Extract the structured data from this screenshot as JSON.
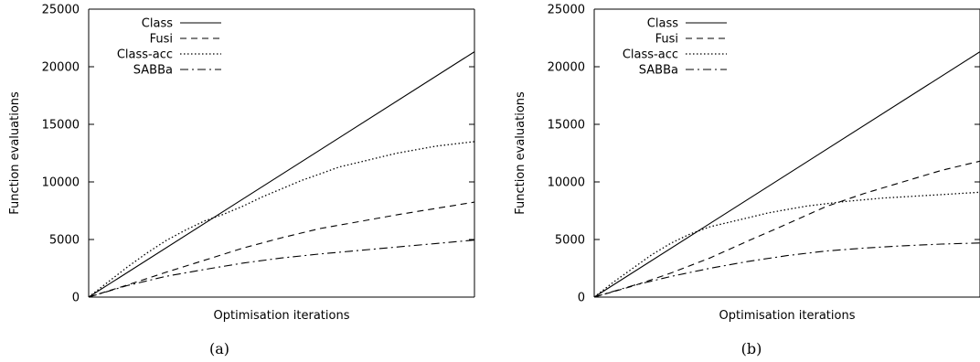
{
  "chart_data": [
    {
      "type": "line",
      "caption": "(a)",
      "xlabel": "Optimisation iterations",
      "ylabel": "Function evaluations",
      "ylim": [
        0,
        25000
      ],
      "yticks": [
        0,
        5000,
        10000,
        15000,
        20000,
        25000
      ],
      "xlim": [
        0,
        1
      ],
      "x_tick_labels": false,
      "grid": false,
      "legend_position": "top-left",
      "series": [
        {
          "name": "Class",
          "style": "solid",
          "points": [
            [
              0,
              0
            ],
            [
              1,
              21300
            ]
          ]
        },
        {
          "name": "Fusi",
          "style": "dashed",
          "points": [
            [
              0,
              0
            ],
            [
              0.1,
              1050
            ],
            [
              0.2,
              2150
            ],
            [
              0.3,
              3200
            ],
            [
              0.4,
              4250
            ],
            [
              0.5,
              5150
            ],
            [
              0.6,
              5950
            ],
            [
              0.7,
              6550
            ],
            [
              0.8,
              7150
            ],
            [
              0.9,
              7700
            ],
            [
              1,
              8250
            ]
          ]
        },
        {
          "name": "Class-acc",
          "style": "dotted",
          "points": [
            [
              0,
              0
            ],
            [
              0.05,
              1300
            ],
            [
              0.1,
              2600
            ],
            [
              0.15,
              3800
            ],
            [
              0.2,
              4900
            ],
            [
              0.25,
              5800
            ],
            [
              0.3,
              6600
            ],
            [
              0.35,
              7200
            ],
            [
              0.4,
              7900
            ],
            [
              0.45,
              8700
            ],
            [
              0.5,
              9400
            ],
            [
              0.55,
              10100
            ],
            [
              0.6,
              10700
            ],
            [
              0.65,
              11300
            ],
            [
              0.7,
              11700
            ],
            [
              0.75,
              12100
            ],
            [
              0.8,
              12500
            ],
            [
              0.85,
              12800
            ],
            [
              0.9,
              13100
            ],
            [
              0.95,
              13300
            ],
            [
              1,
              13500
            ]
          ]
        },
        {
          "name": "SABBa",
          "style": "dashdot",
          "points": [
            [
              0,
              0
            ],
            [
              0.1,
              1000
            ],
            [
              0.2,
              1800
            ],
            [
              0.3,
              2400
            ],
            [
              0.4,
              2950
            ],
            [
              0.5,
              3400
            ],
            [
              0.6,
              3750
            ],
            [
              0.7,
              4050
            ],
            [
              0.8,
              4350
            ],
            [
              0.9,
              4650
            ],
            [
              1,
              4950
            ]
          ]
        }
      ]
    },
    {
      "type": "line",
      "caption": "(b)",
      "xlabel": "Optimisation iterations",
      "ylabel": "Function evaluations",
      "ylim": [
        0,
        25000
      ],
      "yticks": [
        0,
        5000,
        10000,
        15000,
        20000,
        25000
      ],
      "xlim": [
        0,
        1
      ],
      "x_tick_labels": false,
      "grid": false,
      "legend_position": "top-left",
      "series": [
        {
          "name": "Class",
          "style": "solid",
          "points": [
            [
              0,
              0
            ],
            [
              1,
              21300
            ]
          ]
        },
        {
          "name": "Fusi",
          "style": "dashed",
          "points": [
            [
              0,
              0
            ],
            [
              0.1,
              950
            ],
            [
              0.2,
              2100
            ],
            [
              0.3,
              3400
            ],
            [
              0.4,
              4900
            ],
            [
              0.5,
              6350
            ],
            [
              0.6,
              7850
            ],
            [
              0.7,
              9000
            ],
            [
              0.8,
              10000
            ],
            [
              0.9,
              11000
            ],
            [
              1,
              11800
            ]
          ]
        },
        {
          "name": "Class-acc",
          "style": "dotted",
          "points": [
            [
              0,
              0
            ],
            [
              0.05,
              1300
            ],
            [
              0.1,
              2500
            ],
            [
              0.15,
              3700
            ],
            [
              0.2,
              4700
            ],
            [
              0.25,
              5500
            ],
            [
              0.3,
              6100
            ],
            [
              0.35,
              6500
            ],
            [
              0.4,
              6900
            ],
            [
              0.45,
              7300
            ],
            [
              0.5,
              7600
            ],
            [
              0.55,
              7900
            ],
            [
              0.6,
              8100
            ],
            [
              0.65,
              8300
            ],
            [
              0.7,
              8450
            ],
            [
              0.75,
              8600
            ],
            [
              0.8,
              8700
            ],
            [
              0.85,
              8800
            ],
            [
              0.9,
              8900
            ],
            [
              0.95,
              9000
            ],
            [
              1,
              9100
            ]
          ]
        },
        {
          "name": "SABBa",
          "style": "dashdot",
          "points": [
            [
              0,
              0
            ],
            [
              0.1,
              1000
            ],
            [
              0.2,
              1800
            ],
            [
              0.3,
              2500
            ],
            [
              0.4,
              3100
            ],
            [
              0.5,
              3600
            ],
            [
              0.6,
              4000
            ],
            [
              0.7,
              4250
            ],
            [
              0.8,
              4450
            ],
            [
              0.9,
              4600
            ],
            [
              1,
              4700
            ]
          ]
        }
      ]
    }
  ]
}
